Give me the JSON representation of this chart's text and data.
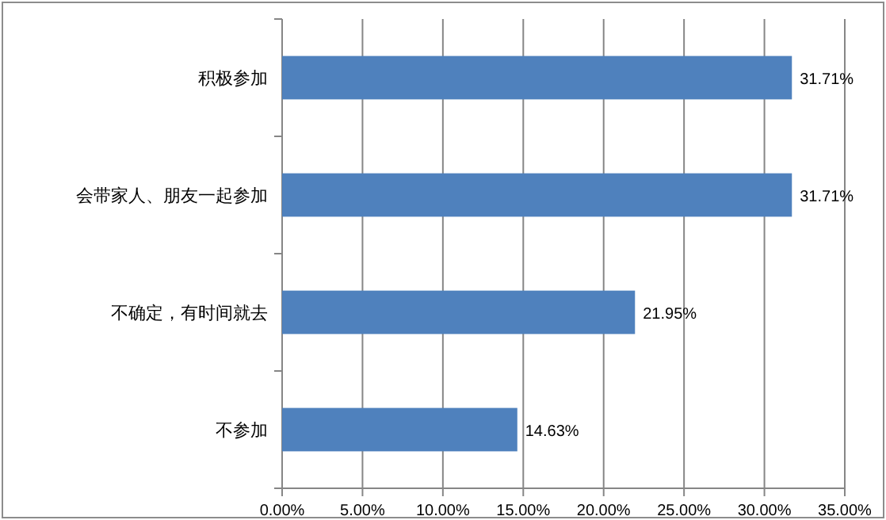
{
  "chart_data": {
    "type": "bar",
    "orientation": "horizontal",
    "categories": [
      "积极参加",
      "会带家人、朋友一起参加",
      "不确定，有时间就去",
      "不参加"
    ],
    "values": [
      31.71,
      31.71,
      21.95,
      14.63
    ],
    "value_labels": [
      "31.71%",
      "31.71%",
      "21.95%",
      "14.63%"
    ],
    "color": "#4f81bd",
    "xlim": [
      0,
      35
    ],
    "xticks": [
      {
        "value": 0,
        "label": "0.00%"
      },
      {
        "value": 5,
        "label": "5.00%"
      },
      {
        "value": 10,
        "label": "10.00%"
      },
      {
        "value": 15,
        "label": "15.00%"
      },
      {
        "value": 20,
        "label": "20.00%"
      },
      {
        "value": 25,
        "label": "25.00%"
      },
      {
        "value": 30,
        "label": "30.00%"
      },
      {
        "value": 35,
        "label": "35.00%"
      }
    ],
    "grid": "x"
  }
}
